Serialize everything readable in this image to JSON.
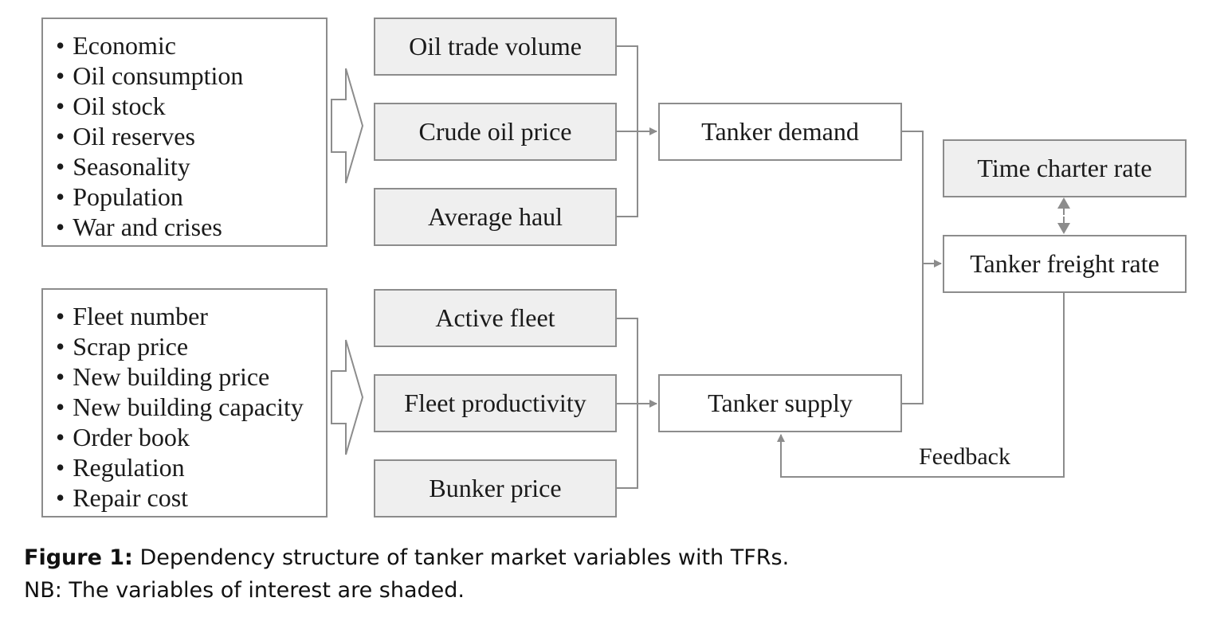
{
  "lists": {
    "demand_factors": [
      "Economic",
      "Oil consumption",
      "Oil stock",
      "Oil reserves",
      "Seasonality",
      "Population",
      "War and crises"
    ],
    "supply_factors": [
      "Fleet number",
      "Scrap price",
      "New building price",
      "New building capacity",
      "Order book",
      "Regulation",
      "Repair cost"
    ]
  },
  "nodes": {
    "oil_trade_volume": "Oil trade volume",
    "crude_oil_price": "Crude oil price",
    "average_haul": "Average haul",
    "active_fleet": "Active fleet",
    "fleet_productivity": "Fleet productivity",
    "bunker_price": "Bunker price",
    "tanker_demand": "Tanker demand",
    "tanker_supply": "Tanker supply",
    "time_charter_rate": "Time charter rate",
    "tanker_freight_rate": "Tanker freight rate"
  },
  "edge_labels": {
    "feedback": "Feedback"
  },
  "caption": {
    "label": "Figure 1:",
    "text": " Dependency structure of tanker market variables with TFRs.",
    "note": "NB: The variables of interest are shaded."
  },
  "colors": {
    "line": "#8c8c8c",
    "shade": "#efefef",
    "border": "#8c8c8c"
  }
}
